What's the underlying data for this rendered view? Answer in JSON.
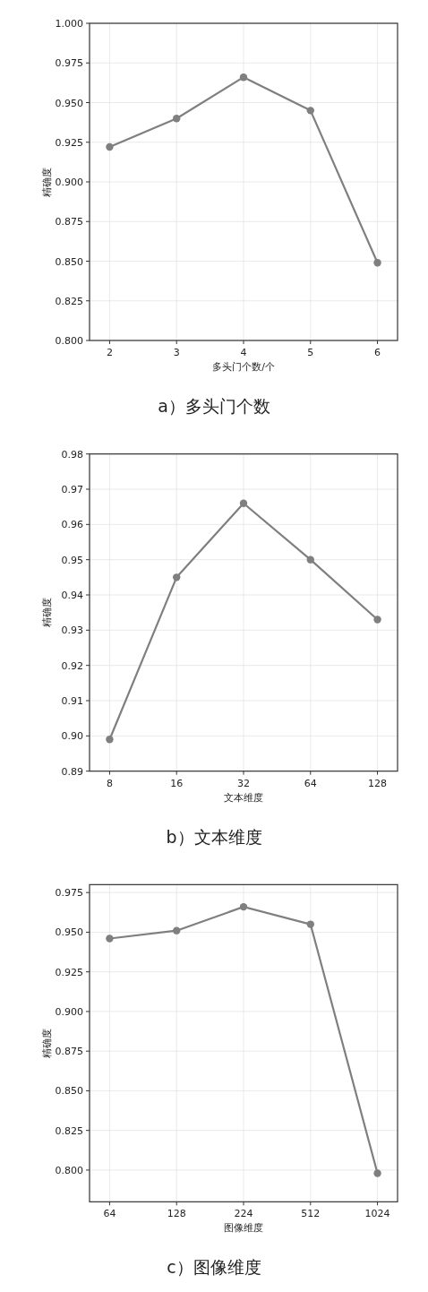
{
  "chart_data": [
    {
      "type": "line",
      "title": "a）多头门个数",
      "xlabel": "多头门个数/个",
      "ylabel": "精确度",
      "categories": [
        "2",
        "3",
        "4",
        "5",
        "6"
      ],
      "series": [
        {
          "color": "#7f7f7f",
          "values": [
            0.922,
            0.94,
            0.966,
            0.945,
            0.849
          ]
        }
      ],
      "ylim": [
        0.8,
        1.0
      ],
      "yticks": [
        {
          "value": 0.8,
          "label": "0.800"
        },
        {
          "value": 0.825,
          "label": "0.825"
        },
        {
          "value": 0.85,
          "label": "0.850"
        },
        {
          "value": 0.875,
          "label": "0.875"
        },
        {
          "value": 0.9,
          "label": "0.900"
        },
        {
          "value": 0.925,
          "label": "0.925"
        },
        {
          "value": 0.95,
          "label": "0.950"
        },
        {
          "value": 0.975,
          "label": "0.975"
        },
        {
          "value": 1.0,
          "label": "1.000"
        }
      ],
      "grid": true,
      "marker": "circle",
      "line_style": "solid"
    },
    {
      "type": "line",
      "title": "b）文本维度",
      "xlabel": "文本维度",
      "ylabel": "精确度",
      "categories": [
        "8",
        "16",
        "32",
        "64",
        "128"
      ],
      "series": [
        {
          "color": "#7f7f7f",
          "values": [
            0.899,
            0.945,
            0.966,
            0.95,
            0.933
          ]
        }
      ],
      "ylim": [
        0.89,
        0.98
      ],
      "yticks": [
        {
          "value": 0.89,
          "label": "0.89"
        },
        {
          "value": 0.9,
          "label": "0.90"
        },
        {
          "value": 0.91,
          "label": "0.91"
        },
        {
          "value": 0.92,
          "label": "0.92"
        },
        {
          "value": 0.93,
          "label": "0.93"
        },
        {
          "value": 0.94,
          "label": "0.94"
        },
        {
          "value": 0.95,
          "label": "0.95"
        },
        {
          "value": 0.96,
          "label": "0.96"
        },
        {
          "value": 0.97,
          "label": "0.97"
        },
        {
          "value": 0.98,
          "label": "0.98"
        }
      ],
      "grid": true,
      "marker": "circle",
      "line_style": "solid"
    },
    {
      "type": "line",
      "title": "c）图像维度",
      "xlabel": "图像维度",
      "ylabel": "精确度",
      "categories": [
        "64",
        "128",
        "224",
        "512",
        "1024"
      ],
      "series": [
        {
          "color": "#7f7f7f",
          "values": [
            0.946,
            0.951,
            0.966,
            0.955,
            0.798
          ]
        }
      ],
      "ylim": [
        0.78,
        0.98
      ],
      "yticks": [
        {
          "value": 0.8,
          "label": "0.800"
        },
        {
          "value": 0.825,
          "label": "0.825"
        },
        {
          "value": 0.85,
          "label": "0.850"
        },
        {
          "value": 0.875,
          "label": "0.875"
        },
        {
          "value": 0.9,
          "label": "0.900"
        },
        {
          "value": 0.925,
          "label": "0.925"
        },
        {
          "value": 0.95,
          "label": "0.950"
        },
        {
          "value": 0.975,
          "label": "0.975"
        }
      ],
      "grid": true,
      "marker": "circle",
      "line_style": "solid"
    }
  ]
}
